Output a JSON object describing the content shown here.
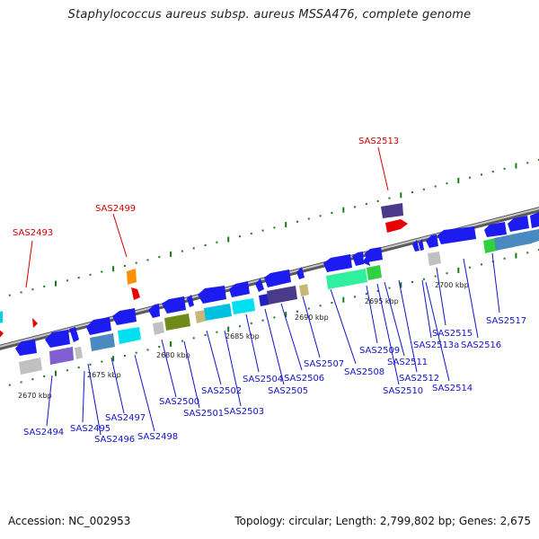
{
  "title": "Staphylococcus aureus subsp. aureus MSSA476, complete genome",
  "footer": {
    "accession": "Accession: NC_002953",
    "info": "Topology: circular; Length: 2,799,802 bp; Genes: 2,675"
  },
  "colors": {
    "backbone": "#8c8c8c",
    "gene_label_forward": "#d40000",
    "gene_label_reverse": "#1212c8",
    "ticks": "#1a7a1a"
  },
  "scale_labels": [
    "2670 kbp",
    "2675 kbp",
    "2680 kbp",
    "2685 kbp",
    "2690 kbp",
    "2695 kbp",
    "2700 kbp"
  ],
  "upper_labels": [
    "SAS2493",
    "SAS2499",
    "SAS2513"
  ],
  "lower_labels": [
    "SAS2494",
    "SAS2495",
    "SAS2496",
    "SAS2497",
    "SAS2498",
    "SAS2500",
    "SAS2501",
    "SAS2502",
    "SAS2503",
    "SAS2504",
    "SAS2505",
    "SAS2506",
    "SAS2507",
    "SAS2508",
    "SAS2509",
    "SAS2510",
    "SAS2511",
    "SAS2512",
    "SAS2513a",
    "SAS2514",
    "SAS2515",
    "SAS2516",
    "SAS2517"
  ]
}
